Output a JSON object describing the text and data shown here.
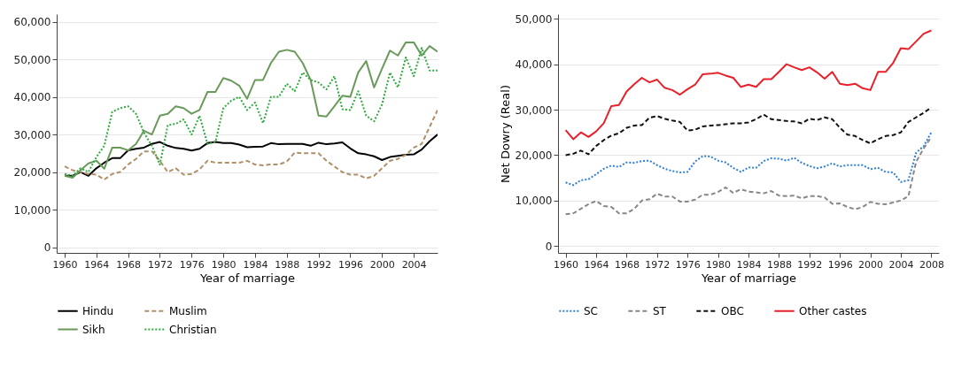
{
  "chart_data": [
    {
      "type": "line",
      "xlabel": "Year of marriage",
      "xlim": [
        1959,
        2007
      ],
      "xticks": [
        1960,
        1964,
        1968,
        1972,
        1976,
        1980,
        1984,
        1988,
        1992,
        1996,
        2000,
        2004
      ],
      "ylim": [
        -1500,
        62000
      ],
      "yticks": [
        0,
        {
          "value": 10000,
          "label": "10,000"
        },
        {
          "value": 20000,
          "label": "20,000"
        },
        {
          "value": 30000,
          "label": "30,000"
        },
        {
          "value": 40000,
          "label": "40,000"
        },
        {
          "value": 50000,
          "label": "50,000"
        },
        {
          "value": 60000,
          "label": "60,000"
        }
      ],
      "grid": "y",
      "legend": "bottom",
      "x": [
        1960,
        1961,
        1962,
        1963,
        1964,
        1965,
        1966,
        1967,
        1968,
        1969,
        1970,
        1971,
        1972,
        1973,
        1974,
        1975,
        1976,
        1977,
        1978,
        1979,
        1980,
        1981,
        1982,
        1983,
        1984,
        1985,
        1986,
        1987,
        1988,
        1989,
        1990,
        1991,
        1992,
        1993,
        1994,
        1995,
        1996,
        1997,
        1998,
        1999,
        2000,
        2001,
        2002,
        2003,
        2004,
        2005,
        2006,
        2007
      ],
      "series": [
        {
          "name": "Hindu",
          "color": "#000000",
          "line_style": "solid",
          "values": [
            19000,
            19000,
            20000,
            19000,
            21000,
            22500,
            23700,
            23700,
            25800,
            26200,
            26500,
            27500,
            28000,
            27000,
            26400,
            26200,
            25700,
            26200,
            27700,
            28000,
            27700,
            27700,
            27300,
            26600,
            26700,
            26800,
            27700,
            27400,
            27500,
            27500,
            27500,
            27000,
            27800,
            27400,
            27600,
            27900,
            26300,
            25000,
            24700,
            24200,
            23200,
            24000,
            24300,
            24600,
            24700,
            26000,
            28200,
            30000
          ]
        },
        {
          "name": "Muslim",
          "color": "#b09068",
          "line_style": "dashed",
          "values": [
            21500,
            20500,
            20000,
            19500,
            19300,
            18000,
            19500,
            20000,
            22000,
            23500,
            25500,
            25500,
            23000,
            20000,
            21000,
            19300,
            19500,
            20700,
            23000,
            22500,
            22500,
            22500,
            22500,
            23000,
            22000,
            21800,
            22000,
            22000,
            22800,
            25200,
            25000,
            25000,
            25000,
            23000,
            21500,
            20000,
            19300,
            19300,
            18300,
            19000,
            21000,
            23000,
            23500,
            24600,
            26500,
            27500,
            32000,
            36500
          ]
        },
        {
          "name": "Sikh",
          "color": "#6a9a5a",
          "line_style": "solid",
          "values": [
            19000,
            18500,
            20500,
            22300,
            23000,
            20900,
            26500,
            26500,
            25800,
            27500,
            31000,
            30000,
            35000,
            35500,
            37500,
            37000,
            35500,
            36500,
            41300,
            41300,
            45000,
            44300,
            43000,
            39500,
            44500,
            44500,
            49000,
            52000,
            52500,
            52000,
            49000,
            44500,
            35000,
            34800,
            37500,
            40300,
            40000,
            46500,
            49500,
            42500,
            47500,
            52300,
            51000,
            54500,
            54500,
            51000,
            53500,
            52000
          ]
        },
        {
          "name": "Christian",
          "color": "#2eaa3e",
          "line_style": "dotted",
          "values": [
            19500,
            19000,
            21000,
            20000,
            24000,
            27000,
            36000,
            37000,
            37500,
            35500,
            30500,
            27000,
            22000,
            32500,
            32800,
            34000,
            30000,
            35000,
            27500,
            28000,
            37000,
            39000,
            40000,
            36500,
            38500,
            33000,
            40000,
            40000,
            43500,
            41500,
            46500,
            44500,
            43800,
            42000,
            45500,
            36700,
            36500,
            41500,
            35000,
            33500,
            38000,
            46500,
            42500,
            50500,
            45500,
            53000,
            47000,
            47000
          ]
        }
      ]
    },
    {
      "type": "line",
      "xlabel": "Year of marriage",
      "ylabel": "Net Dowry (Real)",
      "xlim": [
        1959,
        2009
      ],
      "xticks": [
        1960,
        1964,
        1968,
        1972,
        1976,
        1980,
        1984,
        1988,
        1992,
        1996,
        2000,
        2004,
        2008
      ],
      "ylim": [
        -1500,
        51000
      ],
      "yticks": [
        0,
        {
          "value": 10000,
          "label": "10,000"
        },
        {
          "value": 20000,
          "label": "20,000"
        },
        {
          "value": 30000,
          "label": "30,000"
        },
        {
          "value": 40000,
          "label": "40,000"
        },
        {
          "value": 50000,
          "label": "50,000"
        }
      ],
      "grid": "y",
      "legend": "bottom",
      "x": [
        1960,
        1961,
        1962,
        1963,
        1964,
        1965,
        1966,
        1967,
        1968,
        1969,
        1970,
        1971,
        1972,
        1973,
        1974,
        1975,
        1976,
        1977,
        1978,
        1979,
        1980,
        1981,
        1982,
        1983,
        1984,
        1985,
        1986,
        1987,
        1988,
        1989,
        1990,
        1991,
        1992,
        1993,
        1994,
        1995,
        1996,
        1997,
        1998,
        1999,
        2000,
        2001,
        2002,
        2003,
        2004,
        2005,
        2006,
        2007,
        2008
      ],
      "series": [
        {
          "name": "SC",
          "color": "#2f7fd8",
          "line_style": "dotted",
          "values": [
            14000,
            13400,
            14500,
            14700,
            15800,
            17000,
            17700,
            17400,
            18400,
            18300,
            18700,
            18800,
            17800,
            17000,
            16500,
            16200,
            16300,
            18600,
            19800,
            19700,
            18800,
            18400,
            17200,
            16300,
            17300,
            17200,
            18700,
            19300,
            19200,
            18800,
            19400,
            18300,
            17600,
            17100,
            17500,
            18200,
            17500,
            17800,
            17800,
            17800,
            16900,
            17200,
            16300,
            16200,
            14100,
            14500,
            20500,
            22000,
            25000
          ]
        },
        {
          "name": "ST",
          "color": "#888888",
          "line_style": "dashed",
          "values": [
            7000,
            7200,
            8200,
            9200,
            9900,
            8800,
            8600,
            7200,
            7200,
            8200,
            10000,
            10300,
            11500,
            10900,
            10900,
            9800,
            9800,
            10200,
            11300,
            11300,
            11900,
            12900,
            11700,
            12500,
            12000,
            11800,
            11600,
            12100,
            11100,
            11000,
            11100,
            10500,
            11000,
            11000,
            10700,
            9300,
            9400,
            8600,
            8100,
            8600,
            9700,
            9300,
            9200,
            9600,
            10000,
            11000,
            18500,
            21500,
            24000
          ]
        },
        {
          "name": "OBC",
          "color": "#111111",
          "line_style": "dashed",
          "values": [
            20000,
            20300,
            21000,
            20200,
            22000,
            23300,
            24300,
            24800,
            26000,
            26500,
            26600,
            28200,
            28600,
            28000,
            27600,
            27300,
            25400,
            25600,
            26300,
            26500,
            26600,
            26800,
            27000,
            27000,
            27200,
            27900,
            28900,
            27900,
            27700,
            27500,
            27400,
            27000,
            28000,
            27700,
            28300,
            27900,
            26000,
            24500,
            24200,
            23300,
            22600,
            23500,
            24200,
            24400,
            25000,
            27300,
            28300,
            29300,
            30500
          ]
        },
        {
          "name": "Other castes",
          "color": "#e8202a",
          "line_style": "solid",
          "values": [
            25500,
            23500,
            25000,
            24000,
            25200,
            27000,
            30800,
            31000,
            34000,
            35600,
            37000,
            36000,
            36600,
            34800,
            34300,
            33300,
            34500,
            35500,
            37800,
            37900,
            38100,
            37500,
            37000,
            35000,
            35500,
            35000,
            36700,
            36700,
            38300,
            40000,
            39300,
            38700,
            39300,
            38200,
            36800,
            38300,
            35700,
            35400,
            35700,
            34700,
            34300,
            38300,
            38300,
            40300,
            43500,
            43300,
            45000,
            46700,
            47400
          ]
        }
      ]
    }
  ]
}
